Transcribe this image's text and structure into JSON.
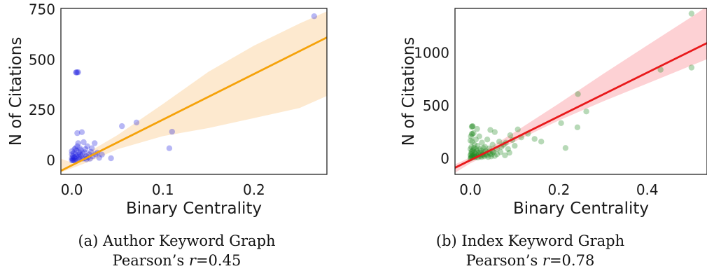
{
  "chart_data": [
    {
      "type": "scatter",
      "panel_id": "a",
      "xlabel": "Binary Centrality",
      "ylabel": "N of Citations",
      "xlim": [
        -0.012,
        0.28
      ],
      "ylim": [
        -70,
        755
      ],
      "xticks": [
        0.0,
        0.1,
        0.2
      ],
      "xtick_labels": [
        "0.0",
        "0.1",
        "0.2"
      ],
      "yticks": [
        0,
        250,
        500,
        750
      ],
      "ytick_labels": [
        "0",
        "250",
        "500",
        "750"
      ],
      "grid": false,
      "point_color": "#2020e0",
      "line_color": "#f5a20a",
      "band_color": "#fde9cf",
      "regression": {
        "intercept": -25,
        "slope": 2270
      },
      "ci_band": [
        [
          -0.012,
          -60,
          8
        ],
        [
          0.0,
          -40,
          -12
        ],
        [
          0.02,
          -5,
          45
        ],
        [
          0.05,
          55,
          125
        ],
        [
          0.1,
          120,
          280
        ],
        [
          0.15,
          160,
          440
        ],
        [
          0.2,
          210,
          570
        ],
        [
          0.25,
          260,
          680
        ],
        [
          0.28,
          320,
          740
        ]
      ],
      "points": [
        [
          0.266,
          716
        ],
        [
          0.11,
          142
        ],
        [
          0.107,
          60
        ],
        [
          0.071,
          188
        ],
        [
          0.055,
          170
        ],
        [
          0.043,
          10
        ],
        [
          0.033,
          28
        ],
        [
          0.028,
          38
        ],
        [
          0.025,
          85
        ],
        [
          0.022,
          60
        ],
        [
          0.021,
          42
        ],
        [
          0.019,
          30
        ],
        [
          0.017,
          70
        ],
        [
          0.016,
          20
        ],
        [
          0.015,
          55
        ],
        [
          0.014,
          10
        ],
        [
          0.013,
          90
        ],
        [
          0.012,
          35
        ],
        [
          0.011,
          140
        ],
        [
          0.01,
          22
        ],
        [
          0.009,
          60
        ],
        [
          0.008,
          5
        ],
        [
          0.008,
          40
        ],
        [
          0.007,
          25
        ],
        [
          0.006,
          135
        ],
        [
          0.006,
          70
        ],
        [
          0.005,
          18
        ],
        [
          0.005,
          48
        ],
        [
          0.004,
          8
        ],
        [
          0.004,
          30
        ],
        [
          0.003,
          0
        ],
        [
          0.003,
          55
        ],
        [
          0.002,
          12
        ],
        [
          0.002,
          35
        ],
        [
          0.001,
          5
        ],
        [
          0.001,
          20
        ],
        [
          0.0,
          0
        ],
        [
          0.0,
          10
        ],
        [
          0.0,
          30
        ],
        [
          0.0,
          45
        ],
        [
          0.001,
          0
        ],
        [
          0.002,
          0
        ],
        [
          0.003,
          15
        ],
        [
          0.004,
          60
        ],
        [
          0.006,
          0
        ],
        [
          0.007,
          85
        ],
        [
          0.008,
          15
        ],
        [
          0.009,
          30
        ],
        [
          0.01,
          50
        ],
        [
          0.012,
          8
        ],
        [
          0.014,
          40
        ],
        [
          0.016,
          5
        ],
        [
          0.018,
          15
        ],
        [
          0.02,
          8
        ],
        [
          0.023,
          20
        ],
        [
          0.026,
          30
        ],
        [
          0.03,
          12
        ],
        [
          0.005,
          437
        ],
        [
          0.006,
          437
        ],
        [
          0.0045,
          437
        ],
        [
          0.007,
          438
        ]
      ]
    },
    {
      "type": "scatter",
      "panel_id": "b",
      "xlabel": "Binary Centrality",
      "ylabel": "N of Citations",
      "xlim": [
        -0.035,
        0.535
      ],
      "ylim": [
        -150,
        1420
      ],
      "xticks": [
        0.0,
        0.2,
        0.4
      ],
      "xtick_labels": [
        "0.0",
        "0.2",
        "0.4"
      ],
      "yticks": [
        0,
        500,
        1000
      ],
      "ytick_labels": [
        "0",
        "500",
        "1000"
      ],
      "grid": false,
      "point_color": "#1e8a1e",
      "line_color": "#e8191b",
      "band_color": "#fdd1d4",
      "regression": {
        "intercept": -15,
        "slope": 2070
      },
      "ci_band": [
        [
          -0.035,
          -135,
          -55
        ],
        [
          0.0,
          -45,
          10
        ],
        [
          0.05,
          55,
          120
        ],
        [
          0.1,
          160,
          250
        ],
        [
          0.2,
          360,
          520
        ],
        [
          0.3,
          540,
          800
        ],
        [
          0.4,
          710,
          1070
        ],
        [
          0.5,
          880,
          1340
        ],
        [
          0.535,
          940,
          1440
        ]
      ],
      "points": [
        [
          0.5,
          1370
        ],
        [
          0.5,
          860
        ],
        [
          0.43,
          840
        ],
        [
          0.262,
          445
        ],
        [
          0.243,
          610
        ],
        [
          0.242,
          295
        ],
        [
          0.215,
          100
        ],
        [
          0.205,
          335
        ],
        [
          0.16,
          160
        ],
        [
          0.145,
          185
        ],
        [
          0.13,
          235
        ],
        [
          0.115,
          200
        ],
        [
          0.107,
          275
        ],
        [
          0.1,
          120
        ],
        [
          0.095,
          175
        ],
        [
          0.09,
          220
        ],
        [
          0.085,
          90
        ],
        [
          0.08,
          150
        ],
        [
          0.075,
          130
        ],
        [
          0.07,
          110
        ],
        [
          0.065,
          160
        ],
        [
          0.06,
          90
        ],
        [
          0.055,
          250
        ],
        [
          0.052,
          60
        ],
        [
          0.05,
          130
        ],
        [
          0.048,
          40
        ],
        [
          0.045,
          270
        ],
        [
          0.042,
          95
        ],
        [
          0.04,
          60
        ],
        [
          0.038,
          180
        ],
        [
          0.035,
          40
        ],
        [
          0.033,
          110
        ],
        [
          0.03,
          60
        ],
        [
          0.028,
          30
        ],
        [
          0.026,
          150
        ],
        [
          0.024,
          75
        ],
        [
          0.022,
          20
        ],
        [
          0.02,
          210
        ],
        [
          0.018,
          50
        ],
        [
          0.016,
          120
        ],
        [
          0.015,
          280
        ],
        [
          0.014,
          30
        ],
        [
          0.013,
          90
        ],
        [
          0.012,
          180
        ],
        [
          0.011,
          15
        ],
        [
          0.01,
          60
        ],
        [
          0.009,
          130
        ],
        [
          0.008,
          30
        ],
        [
          0.007,
          240
        ],
        [
          0.006,
          80
        ],
        [
          0.005,
          10
        ],
        [
          0.004,
          160
        ],
        [
          0.004,
          45
        ],
        [
          0.003,
          300
        ],
        [
          0.003,
          20
        ],
        [
          0.002,
          110
        ],
        [
          0.002,
          60
        ],
        [
          0.001,
          5
        ],
        [
          0.001,
          210
        ],
        [
          0.0,
          0
        ],
        [
          0.0,
          30
        ],
        [
          0.0,
          90
        ],
        [
          0.0,
          170
        ],
        [
          0.001,
          40
        ],
        [
          0.002,
          15
        ],
        [
          0.003,
          70
        ],
        [
          0.006,
          25
        ],
        [
          0.008,
          100
        ],
        [
          0.01,
          15
        ],
        [
          0.012,
          45
        ],
        [
          0.014,
          75
        ],
        [
          0.017,
          10
        ],
        [
          0.019,
          35
        ],
        [
          0.021,
          90
        ],
        [
          0.023,
          55
        ],
        [
          0.025,
          15
        ],
        [
          0.027,
          40
        ],
        [
          0.029,
          100
        ],
        [
          0.031,
          20
        ],
        [
          0.034,
          70
        ],
        [
          0.037,
          30
        ],
        [
          0.04,
          15
        ],
        [
          0.044,
          45
        ],
        [
          0.047,
          20
        ],
        [
          0.05,
          70
        ],
        [
          0.055,
          25
        ],
        [
          0.06,
          40
        ],
        [
          0.068,
          60
        ],
        [
          0.078,
          30
        ],
        [
          0.088,
          55
        ],
        [
          0.004,
          305
        ],
        [
          0.005,
          305
        ],
        [
          0.003,
          232
        ],
        [
          0.004,
          232
        ]
      ]
    }
  ],
  "captions": {
    "a": {
      "line1": "(a) Author Keyword Graph",
      "line2": "Pearson’s 𝑟=0.45"
    },
    "b": {
      "line1": "(b) Index Keyword Graph",
      "line2": "Pearson’s 𝑟=0.78"
    }
  }
}
